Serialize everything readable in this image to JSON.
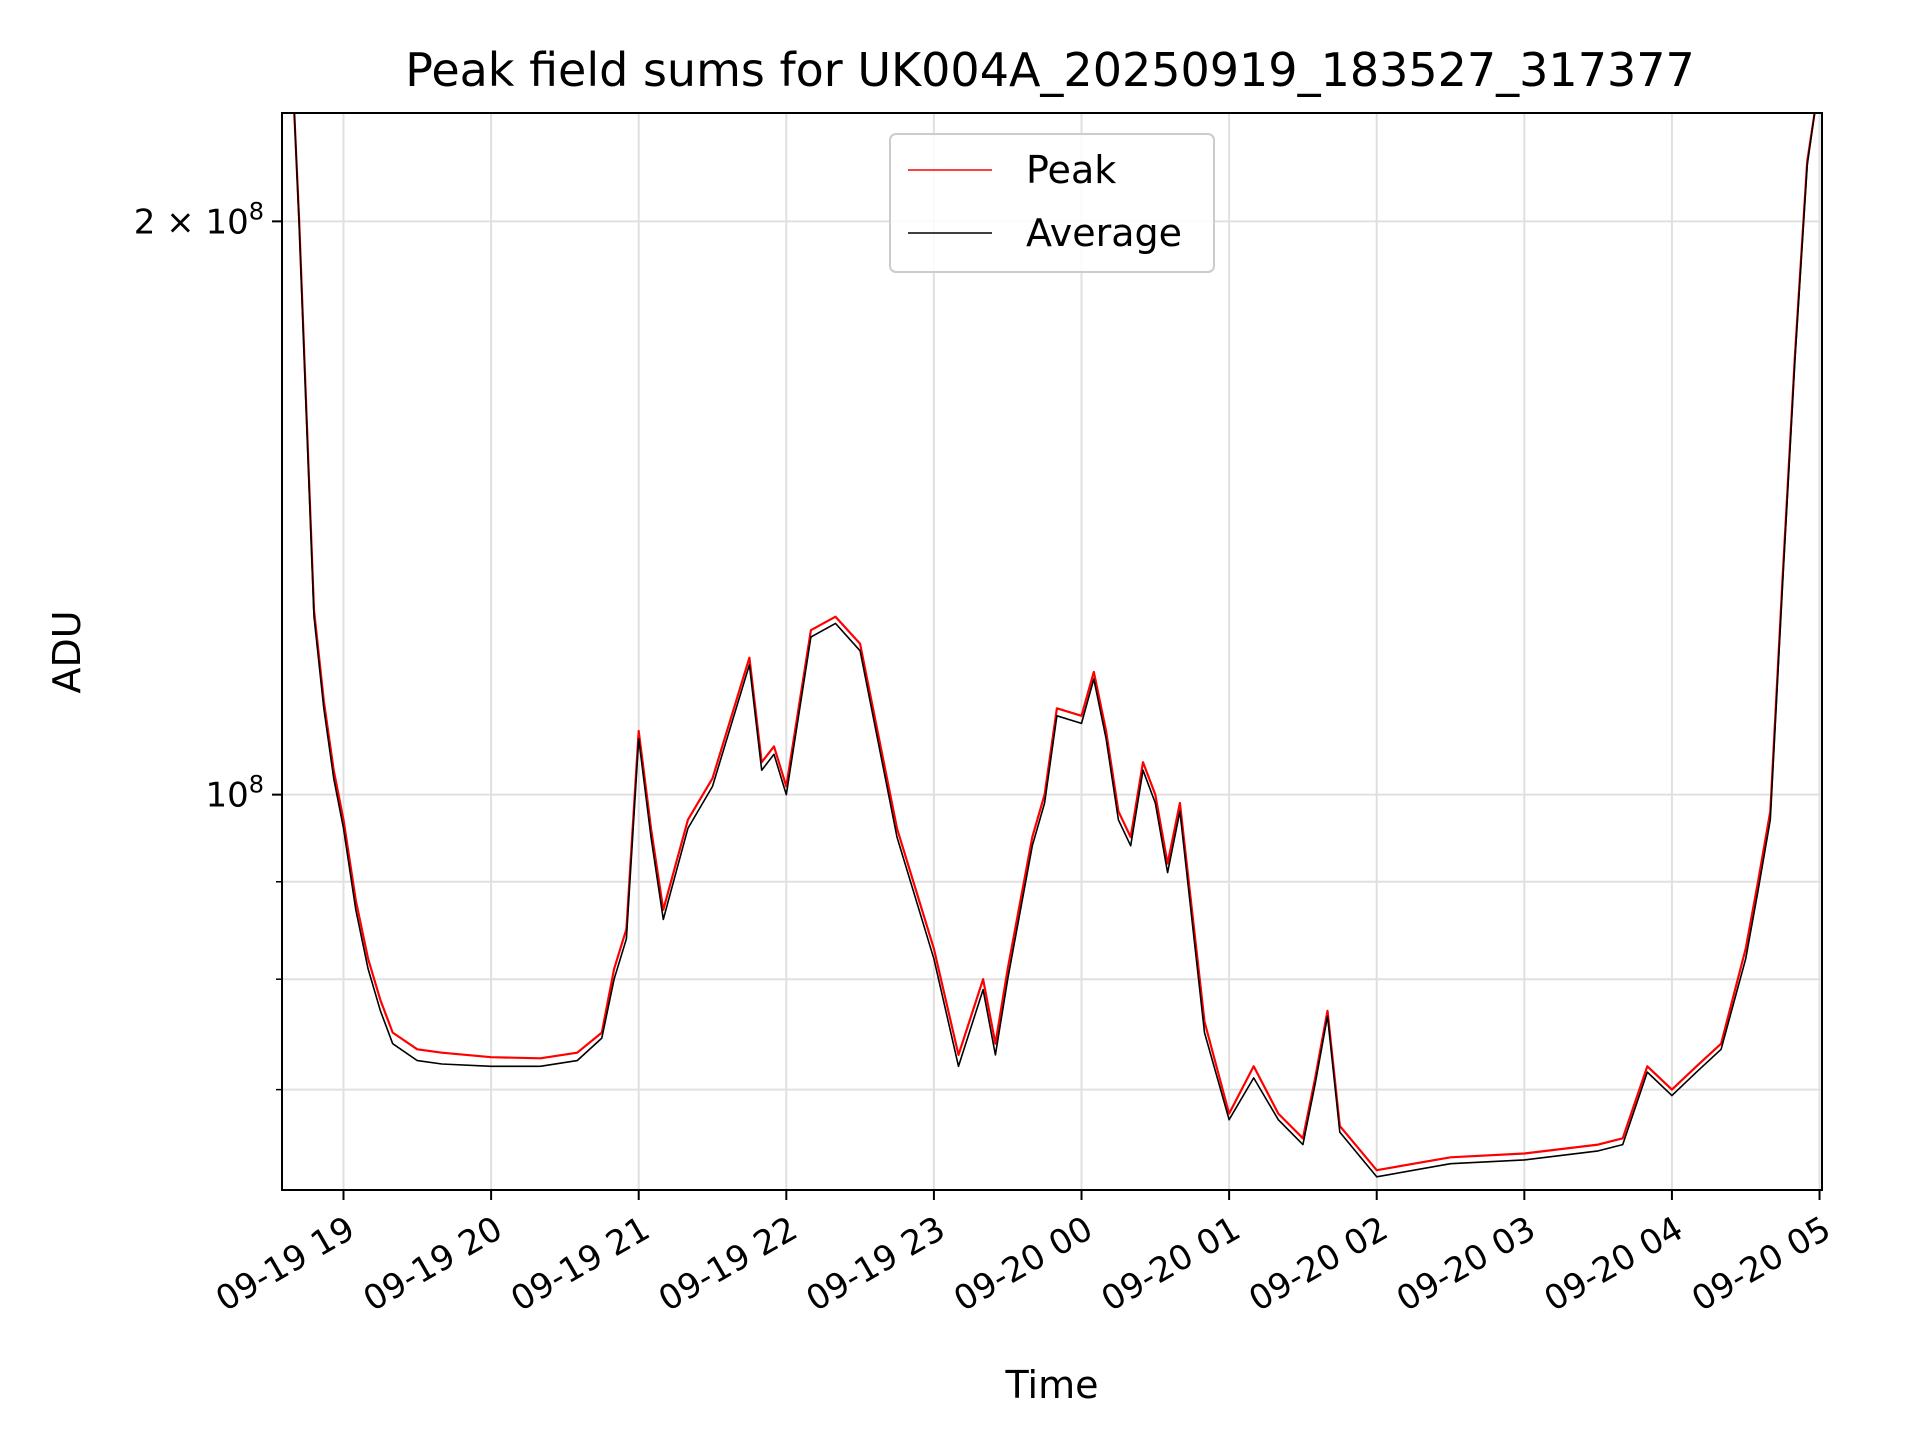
{
  "chart_data": {
    "type": "line",
    "title": "Peak field sums for UK004A_20250919_183527_317377",
    "xlabel": "Time",
    "ylabel": "ADU",
    "y_scale": "log",
    "ylim": [
      62000000,
      228000000
    ],
    "xlim": [
      "2025-09-19 18:35",
      "2025-09-20 05:01"
    ],
    "grid": true,
    "legend_placement": "upper center",
    "x_ticks": [
      "09-19 19",
      "09-19 20",
      "09-19 21",
      "09-19 22",
      "09-19 23",
      "09-20 00",
      "09-20 01",
      "09-20 02",
      "09-20 03",
      "09-20 04",
      "09-20 05"
    ],
    "x_tick_times": [
      "2025-09-19 19:00",
      "2025-09-19 20:00",
      "2025-09-19 21:00",
      "2025-09-19 22:00",
      "2025-09-19 23:00",
      "2025-09-20 00:00",
      "2025-09-20 01:00",
      "2025-09-20 02:00",
      "2025-09-20 03:00",
      "2025-09-20 04:00",
      "2025-09-20 05:00"
    ],
    "y_ticks_major": [
      {
        "value": 100000000,
        "base": "10",
        "exp": "8",
        "prefix": ""
      },
      {
        "value": 200000000,
        "base": "10",
        "exp": "8",
        "prefix": "2 × "
      }
    ],
    "y_ticks_minor": [
      70000000,
      80000000,
      90000000
    ],
    "series": [
      {
        "name": "Peak",
        "color": "#ff0000",
        "x": [
          "2025-09-19 18:40",
          "2025-09-19 18:42",
          "2025-09-19 18:45",
          "2025-09-19 18:48",
          "2025-09-19 18:52",
          "2025-09-19 18:56",
          "2025-09-19 19:00",
          "2025-09-19 19:05",
          "2025-09-19 19:10",
          "2025-09-19 19:15",
          "2025-09-19 19:20",
          "2025-09-19 19:30",
          "2025-09-19 19:40",
          "2025-09-19 20:00",
          "2025-09-19 20:20",
          "2025-09-19 20:35",
          "2025-09-19 20:45",
          "2025-09-19 20:50",
          "2025-09-19 20:55",
          "2025-09-19 21:00",
          "2025-09-19 21:05",
          "2025-09-19 21:10",
          "2025-09-19 21:20",
          "2025-09-19 21:30",
          "2025-09-19 21:45",
          "2025-09-19 21:50",
          "2025-09-19 21:55",
          "2025-09-19 22:00",
          "2025-09-19 22:10",
          "2025-09-19 22:20",
          "2025-09-19 22:30",
          "2025-09-19 22:45",
          "2025-09-19 23:00",
          "2025-09-19 23:10",
          "2025-09-19 23:20",
          "2025-09-19 23:25",
          "2025-09-19 23:30",
          "2025-09-19 23:40",
          "2025-09-19 23:45",
          "2025-09-19 23:50",
          "2025-09-20 00:00",
          "2025-09-20 00:05",
          "2025-09-20 00:10",
          "2025-09-20 00:15",
          "2025-09-20 00:20",
          "2025-09-20 00:25",
          "2025-09-20 00:30",
          "2025-09-20 00:35",
          "2025-09-20 00:40",
          "2025-09-20 00:50",
          "2025-09-20 01:00",
          "2025-09-20 01:10",
          "2025-09-20 01:20",
          "2025-09-20 01:30",
          "2025-09-20 01:35",
          "2025-09-20 01:40",
          "2025-09-20 01:45",
          "2025-09-20 02:00",
          "2025-09-20 02:30",
          "2025-09-20 03:00",
          "2025-09-20 03:30",
          "2025-09-20 03:40",
          "2025-09-20 03:50",
          "2025-09-20 04:00",
          "2025-09-20 04:10",
          "2025-09-20 04:20",
          "2025-09-20 04:30",
          "2025-09-20 04:35",
          "2025-09-20 04:40",
          "2025-09-20 04:45",
          "2025-09-20 04:50",
          "2025-09-20 04:55",
          "2025-09-20 04:58"
        ],
        "y": [
          228000000,
          200000000,
          158000000,
          125000000,
          112000000,
          103000000,
          97000000,
          88000000,
          82000000,
          78000000,
          75000000,
          73500000,
          73200000,
          72800000,
          72700000,
          73200000,
          75000000,
          81000000,
          85000000,
          108000000,
          96000000,
          87000000,
          97000000,
          102000000,
          118000000,
          104000000,
          106000000,
          101000000,
          122000000,
          124000000,
          120000000,
          96000000,
          83000000,
          73000000,
          80000000,
          74000000,
          81000000,
          95000000,
          100000000,
          111000000,
          110000000,
          116000000,
          108000000,
          98000000,
          95000000,
          104000000,
          100000000,
          92000000,
          99000000,
          76000000,
          68000000,
          72000000,
          68000000,
          66000000,
          71000000,
          77000000,
          67000000,
          63500000,
          64500000,
          64800000,
          65500000,
          66000000,
          72000000,
          70000000,
          72000000,
          74000000,
          83000000,
          90000000,
          98000000,
          130000000,
          170000000,
          215000000,
          228000000
        ]
      },
      {
        "name": "Average",
        "color": "#000000",
        "x": [
          "2025-09-19 18:40",
          "2025-09-19 18:42",
          "2025-09-19 18:45",
          "2025-09-19 18:48",
          "2025-09-19 18:52",
          "2025-09-19 18:56",
          "2025-09-19 19:00",
          "2025-09-19 19:05",
          "2025-09-19 19:10",
          "2025-09-19 19:15",
          "2025-09-19 19:20",
          "2025-09-19 19:30",
          "2025-09-19 19:40",
          "2025-09-19 20:00",
          "2025-09-19 20:20",
          "2025-09-19 20:35",
          "2025-09-19 20:45",
          "2025-09-19 20:50",
          "2025-09-19 20:55",
          "2025-09-19 21:00",
          "2025-09-19 21:05",
          "2025-09-19 21:10",
          "2025-09-19 21:20",
          "2025-09-19 21:30",
          "2025-09-19 21:45",
          "2025-09-19 21:50",
          "2025-09-19 21:55",
          "2025-09-19 22:00",
          "2025-09-19 22:10",
          "2025-09-19 22:20",
          "2025-09-19 22:30",
          "2025-09-19 22:45",
          "2025-09-19 23:00",
          "2025-09-19 23:10",
          "2025-09-19 23:20",
          "2025-09-19 23:25",
          "2025-09-19 23:30",
          "2025-09-19 23:40",
          "2025-09-19 23:45",
          "2025-09-19 23:50",
          "2025-09-20 00:00",
          "2025-09-20 00:05",
          "2025-09-20 00:10",
          "2025-09-20 00:15",
          "2025-09-20 00:20",
          "2025-09-20 00:25",
          "2025-09-20 00:30",
          "2025-09-20 00:35",
          "2025-09-20 00:40",
          "2025-09-20 00:50",
          "2025-09-20 01:00",
          "2025-09-20 01:10",
          "2025-09-20 01:20",
          "2025-09-20 01:30",
          "2025-09-20 01:35",
          "2025-09-20 01:40",
          "2025-09-20 01:45",
          "2025-09-20 02:00",
          "2025-09-20 02:30",
          "2025-09-20 03:00",
          "2025-09-20 03:30",
          "2025-09-20 03:40",
          "2025-09-20 03:50",
          "2025-09-20 04:00",
          "2025-09-20 04:10",
          "2025-09-20 04:20",
          "2025-09-20 04:30",
          "2025-09-20 04:35",
          "2025-09-20 04:40",
          "2025-09-20 04:45",
          "2025-09-20 04:50",
          "2025-09-20 04:55",
          "2025-09-20 04:58"
        ],
        "y": [
          228000000,
          199000000,
          157000000,
          124000000,
          111000000,
          102000000,
          96000000,
          87000000,
          81000000,
          77000000,
          74000000,
          72500000,
          72200000,
          72000000,
          72000000,
          72500000,
          74500000,
          80000000,
          84000000,
          107000000,
          95000000,
          86000000,
          96000000,
          101000000,
          117000000,
          103000000,
          105000000,
          100000000,
          121000000,
          123000000,
          119000000,
          95000000,
          82000000,
          72000000,
          79000000,
          73000000,
          80000000,
          94000000,
          99000000,
          110000000,
          109000000,
          115000000,
          107000000,
          97000000,
          94000000,
          103000000,
          99000000,
          91000000,
          98000000,
          75000000,
          67500000,
          71000000,
          67500000,
          65500000,
          70500000,
          76500000,
          66500000,
          63000000,
          64000000,
          64300000,
          65000000,
          65500000,
          71500000,
          69500000,
          71500000,
          73500000,
          82000000,
          89000000,
          97000000,
          129000000,
          169000000,
          214000000,
          228000000
        ]
      }
    ]
  }
}
